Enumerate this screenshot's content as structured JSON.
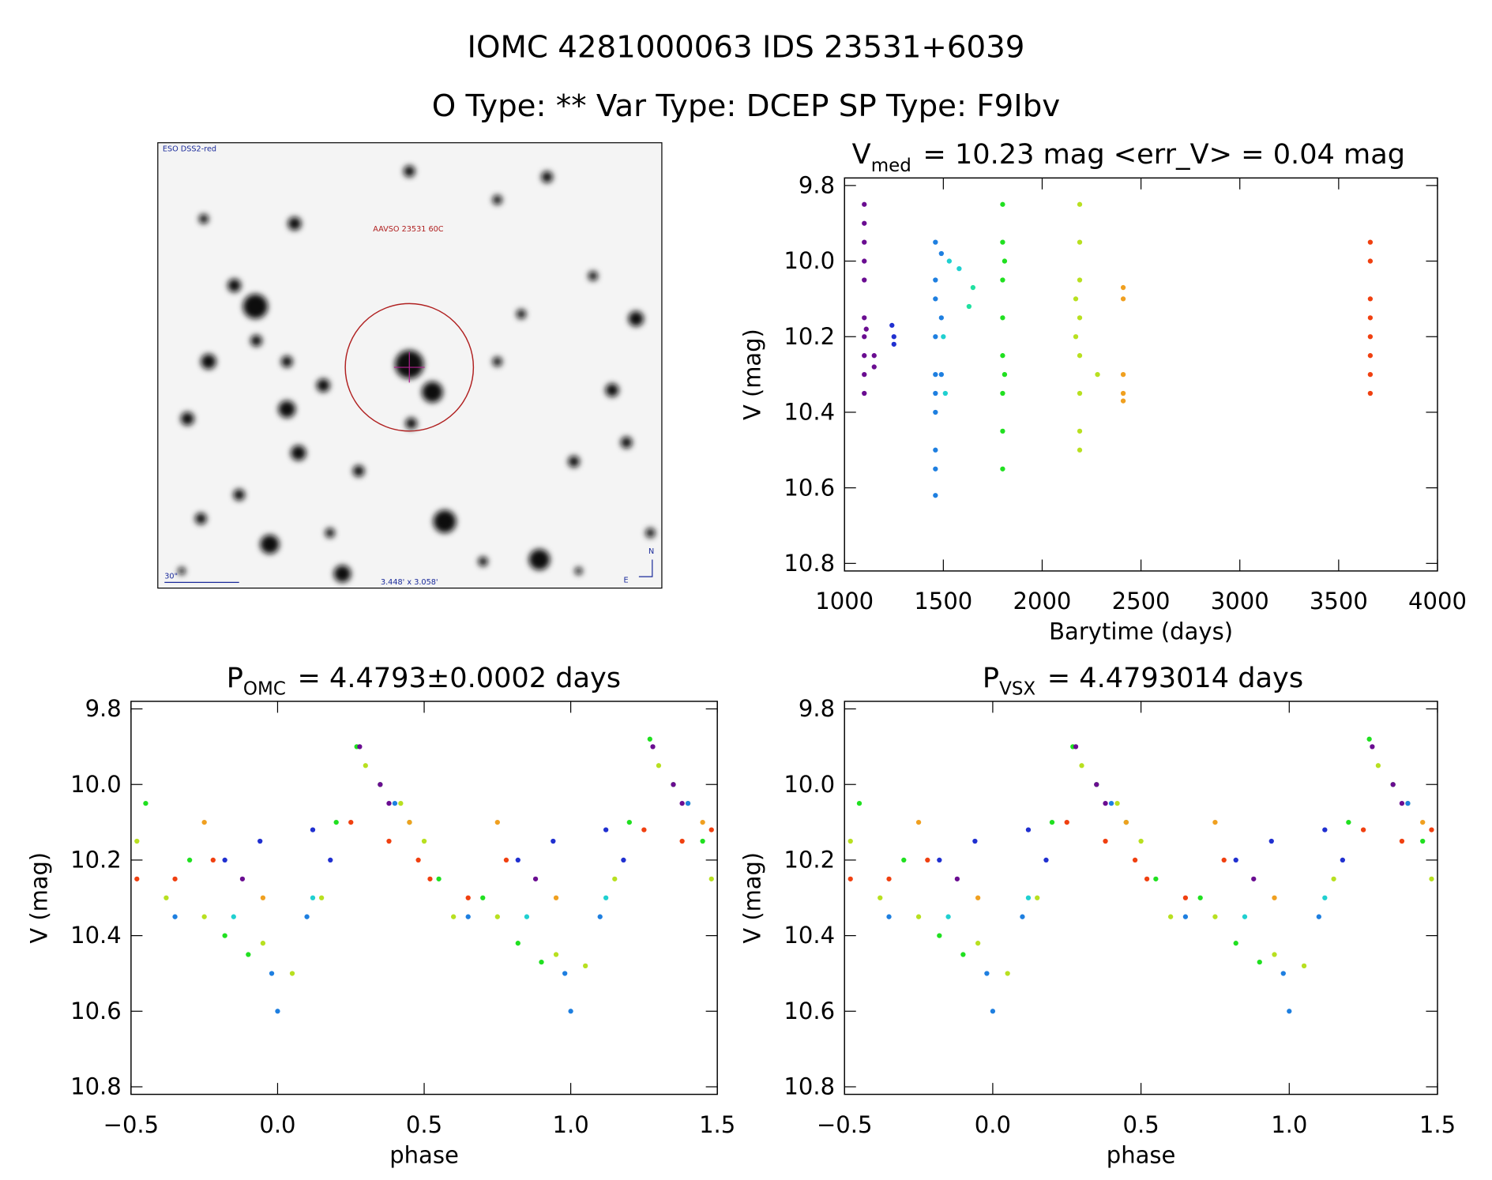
{
  "figure": {
    "title": "IOMC 4281000063   IDS 23531+6039",
    "subtitle": "O Type: **  Var Type: DCEP  SP Type: F9Ibv"
  },
  "chart_data": [
    {
      "type": "image",
      "annotations": {
        "survey": "ESO DSS2-red",
        "target": "AAVSO 23531 60C",
        "scale": "30\"",
        "size": "3.448' x 3.058'",
        "north": "N",
        "east": "E"
      }
    },
    {
      "type": "scatter",
      "title_parts": [
        "V",
        "med",
        "= 10.23 mag <err_V> = 0.04 mag"
      ],
      "xlabel": "Barytime (days)",
      "ylabel": "V (mag)",
      "xlim": [
        1000,
        4000
      ],
      "xticks": [
        1000,
        1500,
        2000,
        2500,
        3000,
        3500,
        4000
      ],
      "ylim": [
        10.82,
        9.78
      ],
      "yticks": [
        9.8,
        {
          "value": 10,
          "label": "10.0"
        },
        10.2,
        10.4,
        10.6,
        10.8
      ],
      "series": [
        {
          "color": "#6a0d91",
          "x": [
            1100,
            1100,
            1100,
            1100,
            1100,
            1100,
            1100,
            1100,
            1100,
            1100,
            1110,
            1150,
            1150
          ],
          "values": [
            9.85,
            9.9,
            9.95,
            10.0,
            10.05,
            10.15,
            10.2,
            10.25,
            10.3,
            10.35,
            10.18,
            10.25,
            10.28
          ]
        },
        {
          "color": "#2030d0",
          "x": [
            1240,
            1250,
            1250
          ],
          "values": [
            10.17,
            10.2,
            10.22
          ]
        },
        {
          "color": "#1e7fe0",
          "x": [
            1460,
            1460,
            1460,
            1460,
            1460,
            1460,
            1460,
            1460,
            1460,
            1460,
            1490,
            1490,
            1490
          ],
          "values": [
            9.95,
            10.05,
            10.1,
            10.2,
            10.3,
            10.35,
            10.4,
            10.5,
            10.55,
            10.62,
            9.98,
            10.15,
            10.3
          ]
        },
        {
          "color": "#20d0d0",
          "x": [
            1500,
            1510,
            1530,
            1580
          ],
          "values": [
            10.2,
            10.35,
            10.0,
            10.02
          ]
        },
        {
          "color": "#20e0a0",
          "x": [
            1630,
            1650
          ],
          "values": [
            10.12,
            10.07
          ]
        },
        {
          "color": "#20e020",
          "x": [
            1800,
            1800,
            1800,
            1800,
            1800,
            1800,
            1800,
            1800,
            1810,
            1810
          ],
          "values": [
            9.85,
            9.95,
            10.05,
            10.15,
            10.25,
            10.35,
            10.45,
            10.55,
            10.0,
            10.3
          ]
        },
        {
          "color": "#b8e020",
          "x": [
            2170,
            2170,
            2190,
            2190,
            2190,
            2190,
            2190,
            2190,
            2190,
            2190,
            2280
          ],
          "values": [
            10.1,
            10.2,
            9.85,
            9.95,
            10.05,
            10.15,
            10.25,
            10.35,
            10.45,
            10.5,
            10.3
          ]
        },
        {
          "color": "#f0a020",
          "x": [
            2410,
            2410,
            2410,
            2410,
            2410
          ],
          "values": [
            10.07,
            10.1,
            10.3,
            10.35,
            10.37
          ]
        },
        {
          "color": "#f04010",
          "x": [
            3660,
            3660,
            3660,
            3660,
            3660,
            3660,
            3660,
            3660
          ],
          "values": [
            9.95,
            10.0,
            10.1,
            10.15,
            10.2,
            10.25,
            10.3,
            10.35
          ]
        }
      ]
    },
    {
      "type": "scatter",
      "title_parts": [
        "P",
        "OMC",
        "= 4.4793±0.0002 days"
      ],
      "xlabel": "phase",
      "ylabel": "V (mag)",
      "xlim": [
        -0.5,
        1.5
      ],
      "xticks": [
        {
          "value": -0.5,
          "label": "−0.5"
        },
        {
          "value": 0,
          "label": "0.0"
        },
        0.5,
        {
          "value": 1,
          "label": "1.0"
        },
        1.5
      ],
      "ylim": [
        10.82,
        9.78
      ],
      "yticks": [
        9.8,
        {
          "value": 10,
          "label": "10.0"
        },
        10.2,
        10.4,
        10.6,
        10.8
      ],
      "series": [
        {
          "color": "#20e020",
          "x": [
            -0.45,
            -0.3,
            -0.18,
            -0.1,
            0.2,
            0.27,
            0.35,
            0.45,
            0.55,
            0.7,
            0.82,
            0.9,
            1.2,
            1.27,
            1.35,
            1.45
          ],
          "values": [
            10.05,
            10.2,
            10.4,
            10.45,
            10.1,
            9.9,
            10.0,
            10.1,
            10.25,
            10.3,
            10.42,
            10.47,
            10.1,
            9.88,
            10.0,
            10.15
          ]
        },
        {
          "color": "#b8e020",
          "x": [
            -0.48,
            -0.38,
            -0.25,
            -0.05,
            0.05,
            0.15,
            0.3,
            0.42,
            0.5,
            0.6,
            0.75,
            0.95,
            1.05,
            1.15,
            1.3,
            1.4,
            1.48
          ],
          "values": [
            10.15,
            10.3,
            10.35,
            10.42,
            10.5,
            10.3,
            9.95,
            10.05,
            10.15,
            10.35,
            10.35,
            10.45,
            10.48,
            10.25,
            9.95,
            10.05,
            10.25
          ]
        },
        {
          "color": "#f04010",
          "x": [
            -0.48,
            -0.35,
            -0.22,
            0.25,
            0.38,
            0.48,
            0.52,
            0.65,
            0.78,
            1.25,
            1.38,
            1.48
          ],
          "values": [
            10.25,
            10.25,
            10.2,
            10.1,
            10.15,
            10.2,
            10.25,
            10.3,
            10.2,
            10.12,
            10.15,
            10.12
          ]
        },
        {
          "color": "#f0a020",
          "x": [
            -0.25,
            -0.05,
            0.45,
            0.75,
            0.95,
            1.45
          ],
          "values": [
            10.1,
            10.3,
            10.1,
            10.1,
            10.3,
            10.1
          ]
        },
        {
          "color": "#1e7fe0",
          "x": [
            -0.35,
            -0.02,
            0.0,
            0.1,
            0.4,
            0.65,
            0.98,
            1.0,
            1.1,
            1.4
          ],
          "values": [
            10.35,
            10.5,
            10.6,
            10.35,
            10.05,
            10.35,
            10.5,
            10.6,
            10.35,
            10.05
          ]
        },
        {
          "color": "#6a0d91",
          "x": [
            -0.12,
            0.28,
            0.35,
            0.38,
            0.88,
            1.28,
            1.35,
            1.38
          ],
          "values": [
            10.25,
            9.9,
            10.0,
            10.05,
            10.25,
            9.9,
            10.0,
            10.05
          ]
        },
        {
          "color": "#2030d0",
          "x": [
            -0.18,
            -0.06,
            0.12,
            0.18,
            0.82,
            0.94,
            1.12,
            1.18
          ],
          "values": [
            10.2,
            10.15,
            10.12,
            10.2,
            10.2,
            10.15,
            10.12,
            10.2
          ]
        },
        {
          "color": "#20d0d0",
          "x": [
            -0.15,
            0.12,
            0.85,
            1.12
          ],
          "values": [
            10.35,
            10.3,
            10.35,
            10.3
          ]
        }
      ]
    },
    {
      "type": "scatter",
      "title_parts": [
        "P",
        "VSX",
        "= 4.4793014 days"
      ],
      "xlabel": "phase",
      "ylabel": "V (mag)",
      "xlim": [
        -0.5,
        1.5
      ],
      "xticks": [
        {
          "value": -0.5,
          "label": "−0.5"
        },
        {
          "value": 0,
          "label": "0.0"
        },
        0.5,
        {
          "value": 1,
          "label": "1.0"
        },
        1.5
      ],
      "ylim": [
        10.82,
        9.78
      ],
      "yticks": [
        9.8,
        {
          "value": 10,
          "label": "10.0"
        },
        10.2,
        10.4,
        10.6,
        10.8
      ],
      "series": [
        {
          "color": "#20e020",
          "x": [
            -0.45,
            -0.3,
            -0.18,
            -0.1,
            0.2,
            0.27,
            0.35,
            0.45,
            0.55,
            0.7,
            0.82,
            0.9,
            1.2,
            1.27,
            1.35,
            1.45
          ],
          "values": [
            10.05,
            10.2,
            10.4,
            10.45,
            10.1,
            9.9,
            10.0,
            10.1,
            10.25,
            10.3,
            10.42,
            10.47,
            10.1,
            9.88,
            10.0,
            10.15
          ]
        },
        {
          "color": "#b8e020",
          "x": [
            -0.48,
            -0.38,
            -0.25,
            -0.05,
            0.05,
            0.15,
            0.3,
            0.42,
            0.5,
            0.6,
            0.75,
            0.95,
            1.05,
            1.15,
            1.3,
            1.4,
            1.48
          ],
          "values": [
            10.15,
            10.3,
            10.35,
            10.42,
            10.5,
            10.3,
            9.95,
            10.05,
            10.15,
            10.35,
            10.35,
            10.45,
            10.48,
            10.25,
            9.95,
            10.05,
            10.25
          ]
        },
        {
          "color": "#f04010",
          "x": [
            -0.48,
            -0.35,
            -0.22,
            0.25,
            0.38,
            0.48,
            0.52,
            0.65,
            0.78,
            1.25,
            1.38,
            1.48
          ],
          "values": [
            10.25,
            10.25,
            10.2,
            10.1,
            10.15,
            10.2,
            10.25,
            10.3,
            10.2,
            10.12,
            10.15,
            10.12
          ]
        },
        {
          "color": "#f0a020",
          "x": [
            -0.25,
            -0.05,
            0.45,
            0.75,
            0.95,
            1.45
          ],
          "values": [
            10.1,
            10.3,
            10.1,
            10.1,
            10.3,
            10.1
          ]
        },
        {
          "color": "#1e7fe0",
          "x": [
            -0.35,
            -0.02,
            0.0,
            0.1,
            0.4,
            0.65,
            0.98,
            1.0,
            1.1,
            1.4
          ],
          "values": [
            10.35,
            10.5,
            10.6,
            10.35,
            10.05,
            10.35,
            10.5,
            10.6,
            10.35,
            10.05
          ]
        },
        {
          "color": "#6a0d91",
          "x": [
            -0.12,
            0.28,
            0.35,
            0.38,
            0.88,
            1.28,
            1.35,
            1.38
          ],
          "values": [
            10.25,
            9.9,
            10.0,
            10.05,
            10.25,
            9.9,
            10.0,
            10.05
          ]
        },
        {
          "color": "#2030d0",
          "x": [
            -0.18,
            -0.06,
            0.12,
            0.18,
            0.82,
            0.94,
            1.12,
            1.18
          ],
          "values": [
            10.2,
            10.15,
            10.12,
            10.2,
            10.2,
            10.15,
            10.12,
            10.2
          ]
        },
        {
          "color": "#20d0d0",
          "x": [
            -0.15,
            0.12,
            0.85,
            1.12
          ],
          "values": [
            10.35,
            10.3,
            10.35,
            10.3
          ]
        }
      ]
    }
  ]
}
